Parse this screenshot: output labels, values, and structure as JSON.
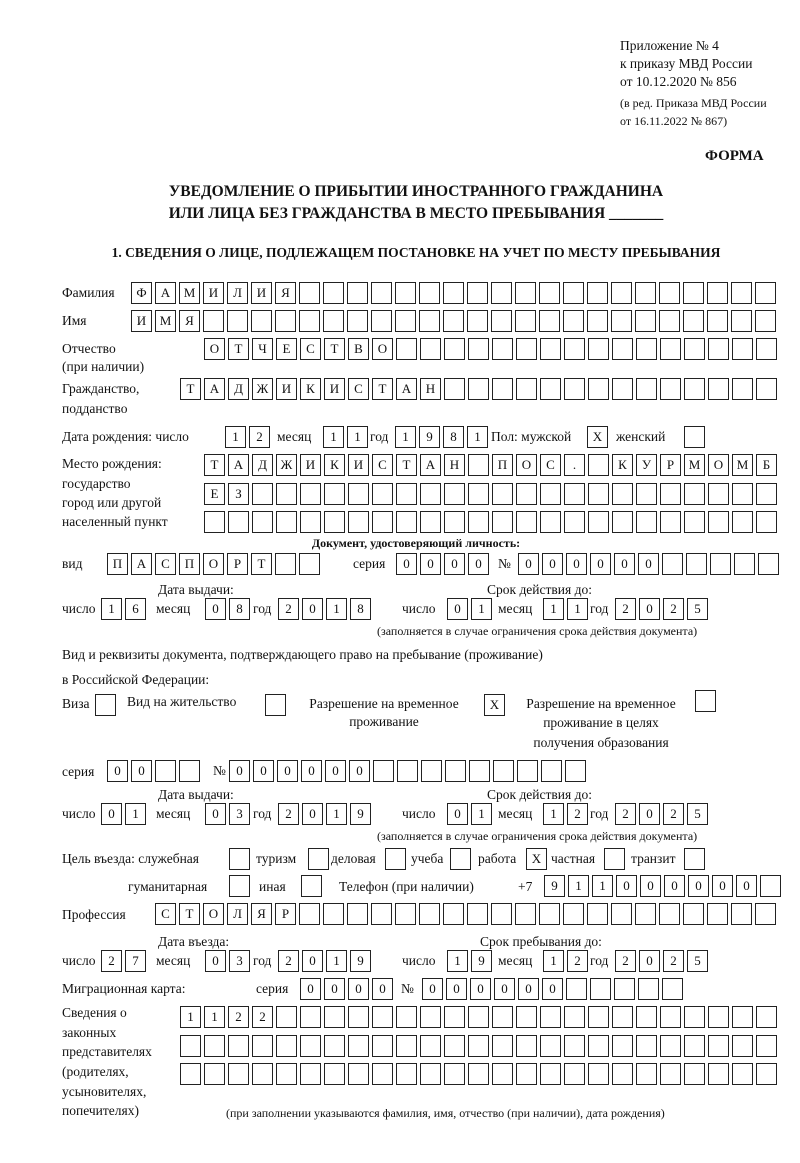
{
  "header": {
    "appendix": "Приложение № 4",
    "order": "к приказу МВД России",
    "order_date": "от 10.12.2020 № 856",
    "edition": "(в ред. Приказа МВД России",
    "edition_date": "от 16.11.2022 № 867)",
    "form_label": "ФОРМА",
    "title_line1": "УВЕДОМЛЕНИЕ О ПРИБЫТИИ ИНОСТРАННОГО ГРАЖДАНИНА",
    "title_line2": "ИЛИ ЛИЦА БЕЗ ГРАЖДАНСТВА В МЕСТО ПРЕБЫВАНИЯ _______",
    "section1": "1. СВЕДЕНИЯ О ЛИЦЕ, ПОДЛЕЖАЩЕМ ПОСТАНОВКЕ НА УЧЕТ ПО МЕСТУ ПРЕБЫВАНИЯ"
  },
  "person": {
    "surname_label": "Фамилия",
    "surname": "ФАМИЛИЯ",
    "name_label": "Имя",
    "name": "ИМЯ",
    "patronymic_label1": "Отчество",
    "patronymic_label2": "(при наличии)",
    "patronymic": "ОТЧЕСТВО",
    "citizenship_label1": "Гражданство,",
    "citizenship_label2": "подданство",
    "citizenship": "ТАДЖИКИСТАН",
    "birth_label": "Дата рождения:  число",
    "birth_day": "12",
    "month_label": "месяц",
    "birth_month": "11",
    "year_label": "год",
    "birth_year": "1981",
    "sex_male_label": "Пол: мужской",
    "sex_male": "X",
    "sex_female_label": "женский",
    "sex_female": "",
    "birthplace_label1": "Место рождения:",
    "birthplace_label2": "государство",
    "birthplace_label3": "город или другой",
    "birthplace_label4": "населенный пункт",
    "birthplace_line1": "ТАДЖИКИСТАН ПОС. КУРМОМБ",
    "birthplace_line2": "ЕЗ",
    "birthplace_line3": ""
  },
  "id_document": {
    "heading": "Документ, удостоверяющий личность:",
    "kind_label": "вид",
    "kind": "ПАСПОРТ",
    "series_label": "серия",
    "series": "0000",
    "number_label": "№",
    "number": "000000",
    "issue_label": "Дата выдачи:",
    "valid_label": "Срок действия до:",
    "day_label": "число",
    "month_label": "месяц",
    "year_label": "год",
    "issue_day": "16",
    "issue_month": "08",
    "issue_year": "2018",
    "valid_day": "01",
    "valid_month": "11",
    "valid_year": "2025",
    "note": "(заполняется в случае ограничения срока действия документа)"
  },
  "residence_document": {
    "heading1": "Вид и реквизиты документа, подтверждающего право на пребывание (проживание)",
    "heading2": "в Российской Федерации:",
    "visa_label": "Виза",
    "visa": "",
    "residence_permit_label": "Вид на жительство",
    "residence_permit": "",
    "temp_permit_label1": "Разрешение на временное",
    "temp_permit_label2": "проживание",
    "temp_permit": "X",
    "temp_edu_label1": "Разрешение на временное",
    "temp_edu_label2": "проживание в целях",
    "temp_edu_label3": "получения образования",
    "temp_edu": "",
    "series_label": "серия",
    "series": "00",
    "number_label": "№",
    "number": "000000",
    "issue_label": "Дата выдачи:",
    "valid_label": "Срок действия до:",
    "day_label": "число",
    "month_label": "месяц",
    "year_label": "год",
    "issue_day": "01",
    "issue_month": "03",
    "issue_year": "2019",
    "valid_day": "01",
    "valid_month": "12",
    "valid_year": "2025",
    "note": "(заполняется в случае ограничения срока действия документа)"
  },
  "purpose": {
    "label": "Цель въезда: служебная",
    "official": "",
    "tourism_label": "туризм",
    "tourism": "",
    "business_label": "деловая",
    "business": "",
    "study_label": "учеба",
    "study": "",
    "work_label": "работа",
    "work": "X",
    "private_label": "частная",
    "private": "",
    "transit_label": "транзит",
    "transit": "",
    "humanitarian_label": "гуманитарная",
    "humanitarian": "",
    "other_label": "иная",
    "other": "",
    "phone_label": "Телефон (при наличии)",
    "phone_prefix": "+7",
    "phone": "911000000"
  },
  "profession": {
    "label": "Профессия",
    "value": "СТОЛЯР"
  },
  "entry": {
    "entry_label": "Дата въезда:",
    "stay_label": "Срок пребывания до:",
    "day_label": "число",
    "month_label": "месяц",
    "year_label": "год",
    "entry_day": "27",
    "entry_month": "03",
    "entry_year": "2019",
    "stay_day": "19",
    "stay_month": "12",
    "stay_year": "2025"
  },
  "migration_card": {
    "label": "Миграционная карта:",
    "series_label": "серия",
    "series": "0000",
    "number_label": "№",
    "number": "000000"
  },
  "representatives": {
    "label1": "Сведения о",
    "label2": "законных",
    "label3": "представителях",
    "label4": "(родителях,",
    "label5": "усыновителях,",
    "label6": "попечителях)",
    "line1": "1122",
    "line2": "",
    "line3": "",
    "note": "(при заполнении указываются фамилия, имя, отчество (при наличии), дата рождения)"
  }
}
